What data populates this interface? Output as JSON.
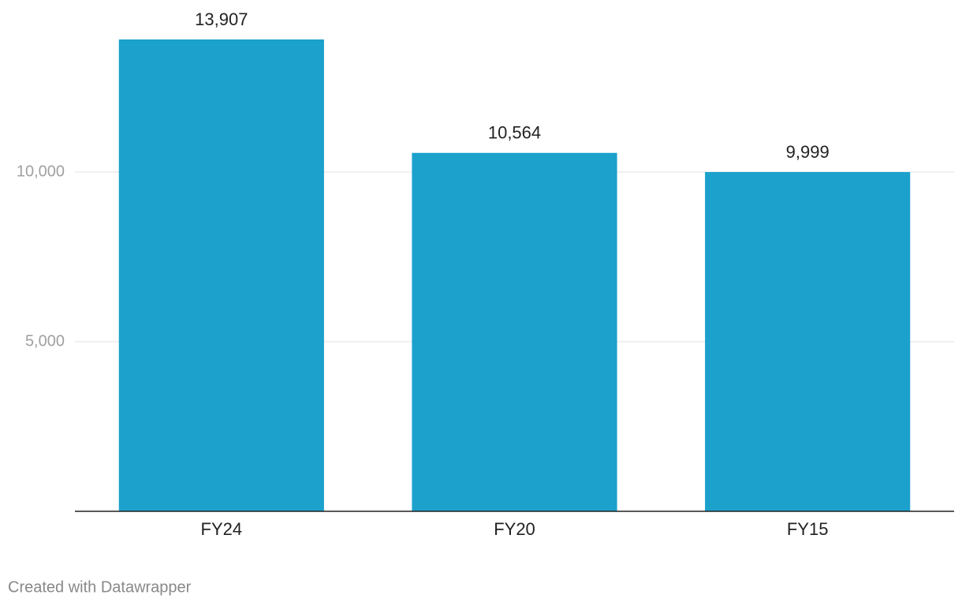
{
  "chart_data": {
    "type": "bar",
    "categories": [
      "FY24",
      "FY20",
      "FY15"
    ],
    "values": [
      13907,
      10564,
      9999
    ],
    "value_labels": [
      "13,907",
      "10,564",
      "9,999"
    ],
    "color": "#1ba1cc",
    "ylim": [
      0,
      15000
    ],
    "yticks": [
      {
        "value": 5000,
        "label": "5,000"
      },
      {
        "value": 10000,
        "label": "10,000"
      }
    ],
    "grid": true,
    "credit": "Created with Datawrapper"
  }
}
